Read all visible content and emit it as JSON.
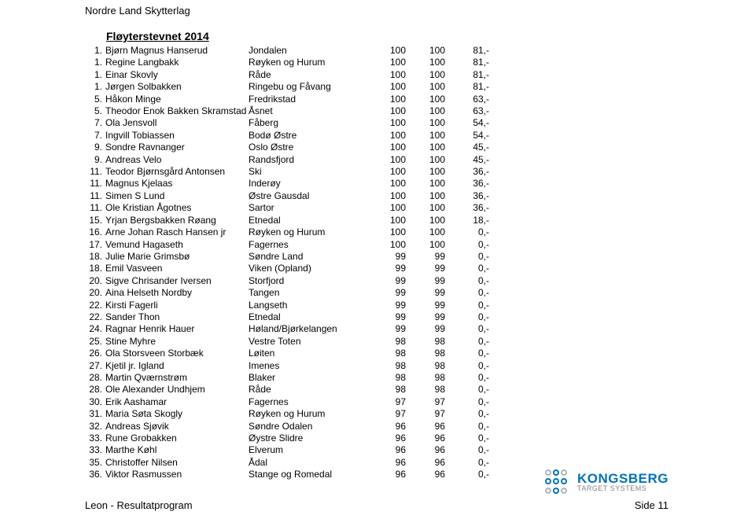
{
  "header": {
    "org_name": "Nordre Land Skytterlag",
    "event_title": "Fløyterstevnet 2014"
  },
  "results": [
    {
      "rank": "1.",
      "name": "Bjørn Magnus Hanserud",
      "club": "Jondalen",
      "v1": "100",
      "v2": "100",
      "v3": "81,-"
    },
    {
      "rank": "1.",
      "name": "Regine Langbakk",
      "club": "Røyken og Hurum",
      "v1": "100",
      "v2": "100",
      "v3": "81,-"
    },
    {
      "rank": "1.",
      "name": "Einar Skovly",
      "club": "Råde",
      "v1": "100",
      "v2": "100",
      "v3": "81,-"
    },
    {
      "rank": "1.",
      "name": "Jørgen Solbakken",
      "club": "Ringebu og Fåvang",
      "v1": "100",
      "v2": "100",
      "v3": "81,-"
    },
    {
      "rank": "5.",
      "name": "Håkon Minge",
      "club": "Fredrikstad",
      "v1": "100",
      "v2": "100",
      "v3": "63,-"
    },
    {
      "rank": "5.",
      "name": "Theodor Enok Bakken Skramstad",
      "club": "Åsnet",
      "v1": "100",
      "v2": "100",
      "v3": "63,-"
    },
    {
      "rank": "7.",
      "name": "Ola Jensvoll",
      "club": "Fåberg",
      "v1": "100",
      "v2": "100",
      "v3": "54,-"
    },
    {
      "rank": "7.",
      "name": "Ingvill Tobiassen",
      "club": "Bodø Østre",
      "v1": "100",
      "v2": "100",
      "v3": "54,-"
    },
    {
      "rank": "9.",
      "name": "Sondre Ravnanger",
      "club": "Oslo Østre",
      "v1": "100",
      "v2": "100",
      "v3": "45,-"
    },
    {
      "rank": "9.",
      "name": "Andreas Velo",
      "club": "Randsfjord",
      "v1": "100",
      "v2": "100",
      "v3": "45,-"
    },
    {
      "rank": "11.",
      "name": "Teodor Bjørnsgård Antonsen",
      "club": "Ski",
      "v1": "100",
      "v2": "100",
      "v3": "36,-"
    },
    {
      "rank": "11.",
      "name": "Magnus Kjelaas",
      "club": "Inderøy",
      "v1": "100",
      "v2": "100",
      "v3": "36,-"
    },
    {
      "rank": "11.",
      "name": "Simen S Lund",
      "club": "Østre Gausdal",
      "v1": "100",
      "v2": "100",
      "v3": "36,-"
    },
    {
      "rank": "11.",
      "name": "Ole Kristian Ågotnes",
      "club": "Sartor",
      "v1": "100",
      "v2": "100",
      "v3": "36,-"
    },
    {
      "rank": "15.",
      "name": "Yrjan Bergsbakken Røang",
      "club": "Etnedal",
      "v1": "100",
      "v2": "100",
      "v3": "18,-"
    },
    {
      "rank": "16.",
      "name": "Arne Johan Rasch Hansen jr",
      "club": "Røyken og Hurum",
      "v1": "100",
      "v2": "100",
      "v3": "0,-"
    },
    {
      "rank": "17.",
      "name": "Vemund Hagaseth",
      "club": "Fagernes",
      "v1": "100",
      "v2": "100",
      "v3": "0,-"
    },
    {
      "rank": "18.",
      "name": "Julie Marie Grimsbø",
      "club": "Søndre Land",
      "v1": "99",
      "v2": "99",
      "v3": "0,-"
    },
    {
      "rank": "18.",
      "name": "Emil Vasveen",
      "club": "Viken (Opland)",
      "v1": "99",
      "v2": "99",
      "v3": "0,-"
    },
    {
      "rank": "20.",
      "name": "Sigve Chrisander Iversen",
      "club": "Storfjord",
      "v1": "99",
      "v2": "99",
      "v3": "0,-"
    },
    {
      "rank": "20.",
      "name": "Aina Helseth Nordby",
      "club": "Tangen",
      "v1": "99",
      "v2": "99",
      "v3": "0,-"
    },
    {
      "rank": "22.",
      "name": "Kirsti Fagerli",
      "club": "Langseth",
      "v1": "99",
      "v2": "99",
      "v3": "0,-"
    },
    {
      "rank": "22.",
      "name": "Sander Thon",
      "club": "Etnedal",
      "v1": "99",
      "v2": "99",
      "v3": "0,-"
    },
    {
      "rank": "24.",
      "name": "Ragnar Henrik Hauer",
      "club": "Høland/Bjørkelangen",
      "v1": "99",
      "v2": "99",
      "v3": "0,-"
    },
    {
      "rank": "25.",
      "name": "Stine Myhre",
      "club": "Vestre Toten",
      "v1": "98",
      "v2": "98",
      "v3": "0,-"
    },
    {
      "rank": "26.",
      "name": "Ola Storsveen Storbæk",
      "club": "Løiten",
      "v1": "98",
      "v2": "98",
      "v3": "0,-"
    },
    {
      "rank": "27.",
      "name": "Kjetil jr. Igland",
      "club": "Imenes",
      "v1": "98",
      "v2": "98",
      "v3": "0,-"
    },
    {
      "rank": "28.",
      "name": "Martin Qværnstrøm",
      "club": "Blaker",
      "v1": "98",
      "v2": "98",
      "v3": "0,-"
    },
    {
      "rank": "28.",
      "name": "Ole Alexander Undhjem",
      "club": "Råde",
      "v1": "98",
      "v2": "98",
      "v3": "0,-"
    },
    {
      "rank": "30.",
      "name": "Erik Aashamar",
      "club": "Fagernes",
      "v1": "97",
      "v2": "97",
      "v3": "0,-"
    },
    {
      "rank": "31.",
      "name": "Maria Søta Skogly",
      "club": "Røyken og Hurum",
      "v1": "97",
      "v2": "97",
      "v3": "0,-"
    },
    {
      "rank": "32.",
      "name": "Andreas Sjøvik",
      "club": "Søndre Odalen",
      "v1": "96",
      "v2": "96",
      "v3": "0,-"
    },
    {
      "rank": "33.",
      "name": "Rune Grobakken",
      "club": "Øystre Slidre",
      "v1": "96",
      "v2": "96",
      "v3": "0,-"
    },
    {
      "rank": "33.",
      "name": "Marthe Køhl",
      "club": "Elverum",
      "v1": "96",
      "v2": "96",
      "v3": "0,-"
    },
    {
      "rank": "35.",
      "name": "Christoffer Nilsen",
      "club": "Ådal",
      "v1": "96",
      "v2": "96",
      "v3": "0,-"
    },
    {
      "rank": "36.",
      "name": "Viktor Rasmussen",
      "club": "Stange og Romedal",
      "v1": "96",
      "v2": "96",
      "v3": "0,-"
    }
  ],
  "footer": {
    "left": "Leon - Resultatprogram",
    "right": "Side 11"
  },
  "logo": {
    "name": "KONGSBERG",
    "sub": "TARGET SYSTEMS",
    "name_color": "#0072bc",
    "sub_color": "#808285",
    "dot_blue": "#0072bc",
    "dot_gray": "#b0b3b6"
  }
}
